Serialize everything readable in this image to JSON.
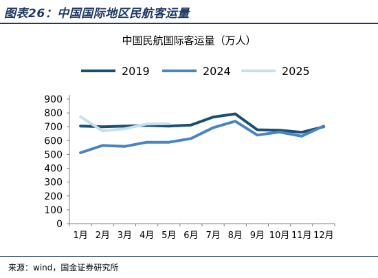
{
  "figure_label": "图表26：中国国际地区民航客运量",
  "source_text": "来源：wind，国金证券研究所",
  "colors": {
    "header": "#1f3864",
    "series_2019": "#1b4f72",
    "series_2024": "#4a84c4",
    "series_2025": "#c6dff0",
    "axis": "#7f7f7f"
  },
  "chart_data": {
    "type": "line",
    "title": "中国民航国际客运量（万人）",
    "xlabel": "",
    "ylabel": "",
    "ylim": [
      0,
      900
    ],
    "yticks": [
      0,
      100,
      200,
      300,
      400,
      500,
      600,
      700,
      800,
      900
    ],
    "categories": [
      "1月",
      "2月",
      "3月",
      "4月",
      "5月",
      "6月",
      "7月",
      "8月",
      "9月",
      "10月",
      "11月",
      "12月"
    ],
    "legend_position": "top",
    "grid": false,
    "series": [
      {
        "name": "2019",
        "color": "#1b4f72",
        "values": [
          705,
          700,
          705,
          710,
          705,
          712,
          770,
          793,
          678,
          675,
          660,
          700
        ]
      },
      {
        "name": "2024",
        "color": "#4a84c4",
        "values": [
          512,
          565,
          558,
          588,
          588,
          615,
          693,
          740,
          640,
          662,
          632,
          705
        ]
      },
      {
        "name": "2025",
        "color": "#c6dff0",
        "values": [
          772,
          670,
          685,
          720,
          722,
          null,
          null,
          null,
          null,
          null,
          null,
          null
        ]
      }
    ]
  }
}
